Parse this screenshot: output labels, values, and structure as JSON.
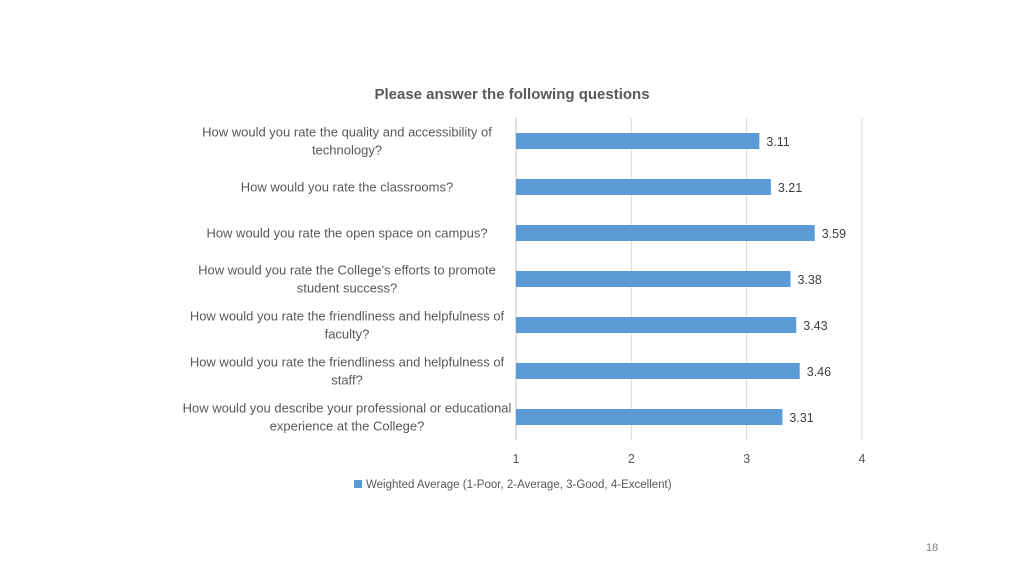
{
  "page_number": "18",
  "chart_data": {
    "type": "bar",
    "orientation": "horizontal",
    "title": "Please answer the following questions",
    "categories": [
      [
        "How would you rate the quality and accessibility of",
        "technology?"
      ],
      [
        "How would you rate the classrooms?"
      ],
      [
        "How would you rate the open space on campus?"
      ],
      [
        "How would you rate the College's efforts to promote",
        "student success?"
      ],
      [
        "How would you rate the friendliness and helpfulness of",
        "faculty?"
      ],
      [
        "How would you rate the friendliness and helpfulness of",
        "staff?"
      ],
      [
        "How would you describe your professional or educational",
        "experience at the College?"
      ]
    ],
    "series": [
      {
        "name": "Weighted Average (1-Poor, 2-Average, 3-Good, 4-Excellent)",
        "values": [
          3.11,
          3.21,
          3.59,
          3.38,
          3.43,
          3.46,
          3.31
        ],
        "labels": [
          "3.11",
          "3.21",
          "3.59",
          "3.38",
          "3.43",
          "3.46",
          "3.31"
        ],
        "color": "#5b9bd5"
      }
    ],
    "xlim": [
      1,
      4
    ],
    "xticks": [
      "1",
      "2",
      "3",
      "4"
    ],
    "grid": true,
    "gridline_color": "#d9d9d9",
    "legend_position": "bottom"
  }
}
